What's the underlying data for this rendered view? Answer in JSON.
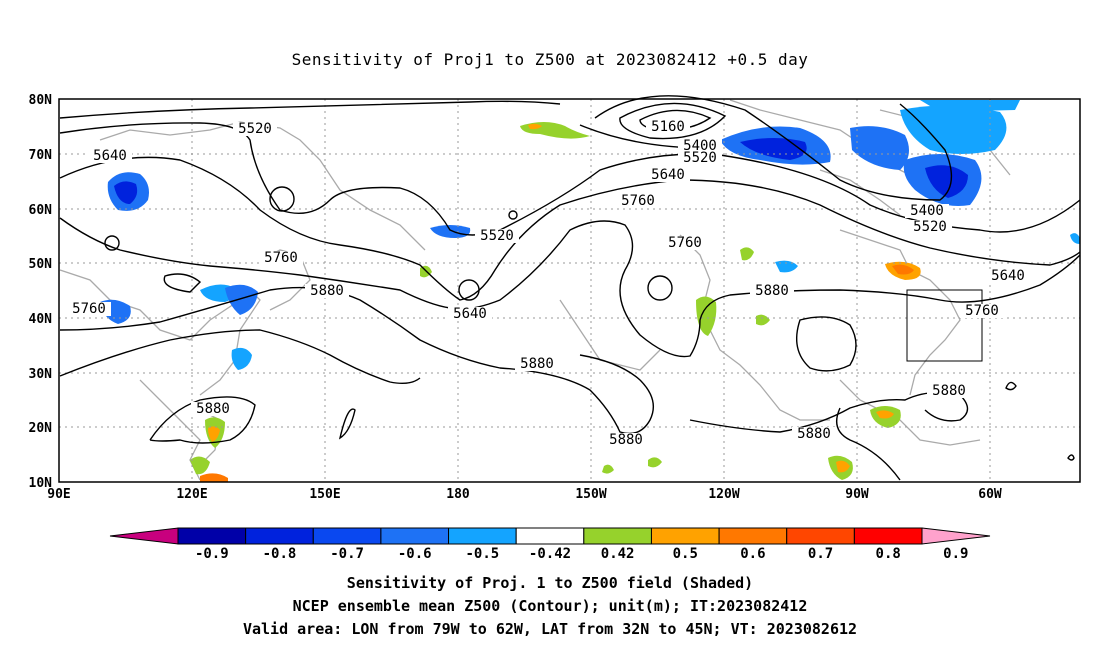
{
  "title": "Sensitivity of Proj1 to Z500 at 2023082412 +0.5 day",
  "map": {
    "lon_labels": [
      "90E",
      "120E",
      "150E",
      "180",
      "150W",
      "120W",
      "90W",
      "60W"
    ],
    "lat_labels": [
      "80N",
      "70N",
      "60N",
      "50N",
      "40N",
      "30N",
      "20N",
      "10N"
    ],
    "contour_labels": [
      {
        "text": "5160"
      },
      {
        "text": "5400"
      },
      {
        "text": "5520"
      },
      {
        "text": "5520"
      },
      {
        "text": "5520"
      },
      {
        "text": "5640"
      },
      {
        "text": "5640"
      },
      {
        "text": "5760"
      },
      {
        "text": "5760"
      },
      {
        "text": "5760"
      },
      {
        "text": "5640"
      },
      {
        "text": "5880"
      },
      {
        "text": "5760"
      },
      {
        "text": "5880"
      },
      {
        "text": "5880"
      },
      {
        "text": "5880"
      },
      {
        "text": "5880"
      },
      {
        "text": "5880"
      },
      {
        "text": "5400"
      },
      {
        "text": "5520"
      },
      {
        "text": "5640"
      },
      {
        "text": "5760"
      },
      {
        "text": "5880"
      }
    ],
    "valid_area": {
      "lon_min": "79W",
      "lon_max": "62W",
      "lat_min": "32N",
      "lat_max": "45N"
    }
  },
  "colorbar": {
    "ticks": [
      "-0.9",
      "-0.8",
      "-0.7",
      "-0.6",
      "-0.5",
      "-0.42",
      "0.42",
      "0.5",
      "0.6",
      "0.7",
      "0.8",
      "0.9"
    ],
    "colors": [
      "#0000a8",
      "#0022dd",
      "#0a48f0",
      "#1e72f5",
      "#14a4ff",
      "#ffffff",
      "#96d22c",
      "#ffa200",
      "#ff7800",
      "#ff4600",
      "#ff0000"
    ],
    "low_end_color": "#c8007e",
    "high_end_color": "#ffa2cc"
  },
  "captions": {
    "line1": "Sensitivity of Proj. 1 to Z500 field (Shaded)",
    "line2": "NCEP ensemble mean Z500 (Contour); unit(m); IT:2023082412",
    "line3": "Valid area: LON from 79W to 62W, LAT from 32N to 45N; VT: 2023082612"
  }
}
